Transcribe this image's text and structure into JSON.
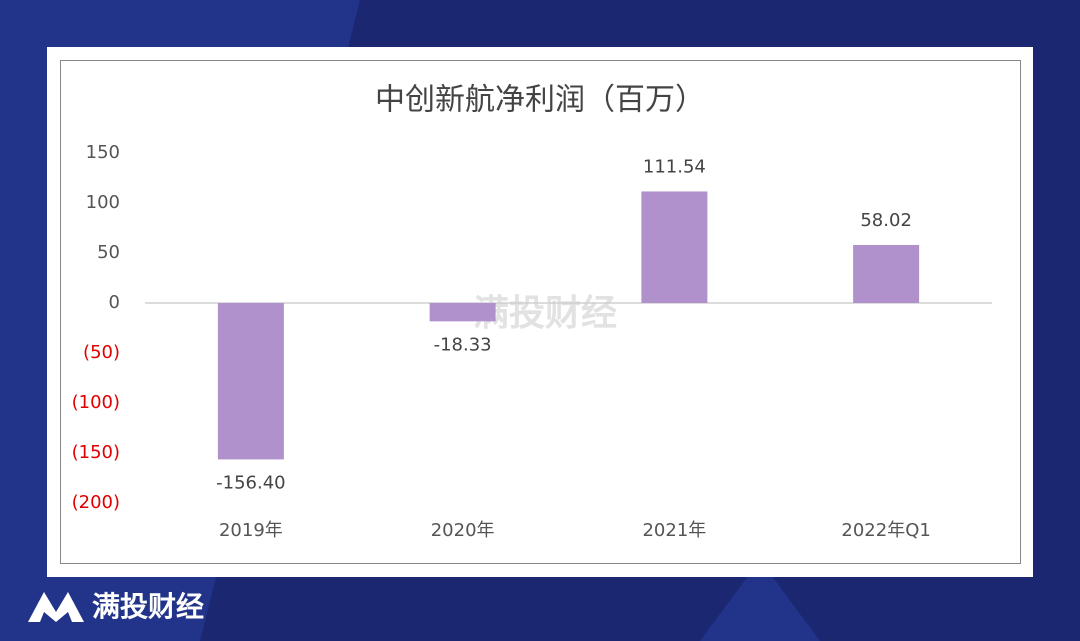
{
  "chart_data": {
    "type": "bar",
    "title": "中创新航净利润（百万）",
    "categories": [
      "2019年",
      "2020年",
      "2021年",
      "2022年Q1"
    ],
    "values": [
      -156.4,
      -18.33,
      111.54,
      58.02
    ],
    "value_labels": [
      "-156.40",
      "-18.33",
      "111.54",
      "58.02"
    ],
    "color": "#b091cc",
    "ylim": [
      -200,
      150
    ],
    "yticks": [
      150,
      100,
      50,
      0,
      {
        "value": -50,
        "label": "(50)"
      },
      {
        "value": -100,
        "label": "(100)"
      },
      {
        "value": -150,
        "label": "(150)"
      },
      {
        "value": -200,
        "label": "(200)"
      }
    ],
    "negative_tick_color": "#e00000",
    "watermark": "满投财经",
    "brand": "满投财经"
  }
}
